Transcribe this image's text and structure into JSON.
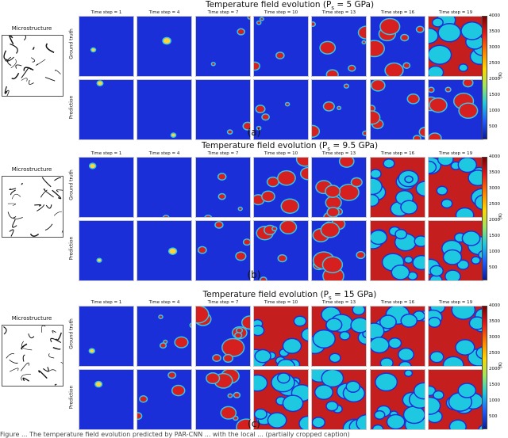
{
  "panels": [
    {
      "title": "Temperature field evolution (P",
      "title_sub": "s",
      "title_suffix": " = 5 GPa)",
      "caption": "(a)",
      "microstructure_label": "Microstructure",
      "row_labels": [
        "Ground truth",
        "Prediction"
      ],
      "level": 0.05,
      "hot_spots_gt": [
        [
          0,
          0
        ],
        [
          0.08,
          0.02
        ],
        [
          0.2,
          0.05
        ],
        [
          0.3,
          0.08
        ],
        [
          0.45,
          0.1
        ],
        [
          0.6,
          0.18
        ],
        [
          0.75,
          0.25
        ]
      ],
      "hot_spots_pred": [
        [
          0,
          0
        ],
        [
          0.05,
          0.02
        ],
        [
          0.15,
          0.04
        ],
        [
          0.25,
          0.07
        ],
        [
          0.35,
          0.1
        ],
        [
          0.5,
          0.16
        ],
        [
          0.6,
          0.2
        ]
      ]
    },
    {
      "title": "Temperature field evolution (P",
      "title_sub": "s",
      "title_suffix": " = 9.5 GPa)",
      "caption": "(b)",
      "microstructure_label": "Microstructure",
      "row_labels": [
        "Ground truth",
        "Prediction"
      ],
      "level": 0.3,
      "hot_spots_gt": [
        [
          0,
          0
        ],
        [
          0.1,
          0.05
        ],
        [
          0.3,
          0.2
        ],
        [
          0.5,
          0.35
        ],
        [
          0.7,
          0.45
        ],
        [
          0.8,
          0.5
        ],
        [
          0.85,
          0.55
        ]
      ],
      "hot_spots_pred": [
        [
          0,
          0
        ],
        [
          0.08,
          0.04
        ],
        [
          0.25,
          0.15
        ],
        [
          0.45,
          0.3
        ],
        [
          0.65,
          0.42
        ],
        [
          0.78,
          0.48
        ],
        [
          0.82,
          0.52
        ]
      ]
    },
    {
      "title": "Temperature field evolution (P",
      "title_sub": "s",
      "title_suffix": " = 15 GPa)",
      "caption": "(c)",
      "microstructure_label": "Microstructure",
      "row_labels": [
        "Ground truth",
        "Prediction"
      ],
      "level": 0.8,
      "hot_spots_gt": [
        [
          0.05,
          0
        ],
        [
          0.35,
          0.25
        ],
        [
          0.7,
          0.55
        ],
        [
          0.85,
          0.7
        ],
        [
          0.9,
          0.75
        ],
        [
          0.9,
          0.78
        ],
        [
          0.92,
          0.8
        ]
      ],
      "hot_spots_pred": [
        [
          0.03,
          0
        ],
        [
          0.3,
          0.2
        ],
        [
          0.6,
          0.5
        ],
        [
          0.78,
          0.65
        ],
        [
          0.85,
          0.72
        ],
        [
          0.88,
          0.76
        ],
        [
          0.9,
          0.78
        ]
      ]
    }
  ],
  "time_steps": [
    "Time step = 1",
    "Time step = 4",
    "Time step = 7",
    "Time step = 10",
    "Time step = 13",
    "Time step = 16",
    "Time step = 19"
  ],
  "colorbar_ticks": [
    "4000",
    "3500",
    "3000",
    "2500",
    "2000",
    "1500",
    "1000",
    "500"
  ],
  "colorbar_unit": "(K)",
  "footer": "Figure ... The temperature field evolution predicted by PAR-CNN ... with the local ... (partially cropped caption)",
  "colors": {
    "cold": "#1a2fd8",
    "mid": "#36c6e6",
    "hot": "#d62020",
    "grid_border": "#c8c8c8"
  }
}
